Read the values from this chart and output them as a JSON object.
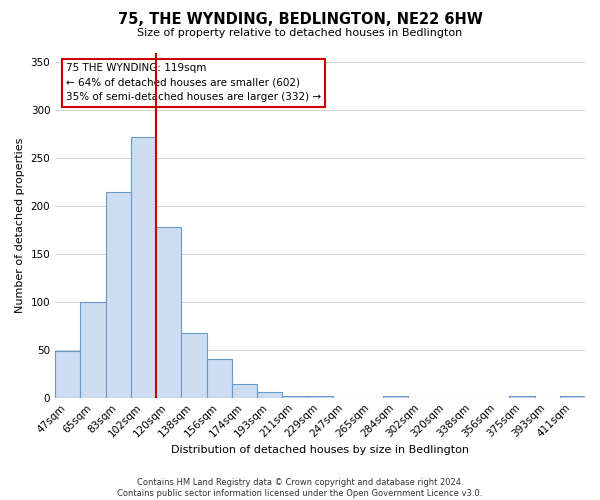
{
  "title": "75, THE WYNDING, BEDLINGTON, NE22 6HW",
  "subtitle": "Size of property relative to detached houses in Bedlington",
  "xlabel": "Distribution of detached houses by size in Bedlington",
  "ylabel": "Number of detached properties",
  "bar_labels": [
    "47sqm",
    "65sqm",
    "83sqm",
    "102sqm",
    "120sqm",
    "138sqm",
    "156sqm",
    "174sqm",
    "193sqm",
    "211sqm",
    "229sqm",
    "247sqm",
    "265sqm",
    "284sqm",
    "302sqm",
    "320sqm",
    "338sqm",
    "356sqm",
    "375sqm",
    "393sqm",
    "411sqm"
  ],
  "bar_values": [
    49,
    100,
    215,
    272,
    178,
    68,
    40,
    14,
    6,
    2,
    2,
    0,
    0,
    2,
    0,
    0,
    0,
    0,
    2,
    0,
    2
  ],
  "bar_color": "#cddcf0",
  "bar_edge_color": "#6699cc",
  "vline_index": 4,
  "vline_color": "#cc0000",
  "annotation_title": "75 THE WYNDING: 119sqm",
  "annotation_line1": "← 64% of detached houses are smaller (602)",
  "annotation_line2": "35% of semi-detached houses are larger (332) →",
  "annotation_box_color": "#ffffff",
  "annotation_box_edge_color": "#cc0000",
  "ylim": [
    0,
    360
  ],
  "yticks": [
    0,
    50,
    100,
    150,
    200,
    250,
    300,
    350
  ],
  "footer_line1": "Contains HM Land Registry data © Crown copyright and database right 2024.",
  "footer_line2": "Contains public sector information licensed under the Open Government Licence v3.0.",
  "background_color": "#ffffff",
  "grid_color": "#cccccc",
  "title_fontsize": 10.5,
  "subtitle_fontsize": 8,
  "xlabel_fontsize": 8,
  "ylabel_fontsize": 8,
  "tick_fontsize": 7.5,
  "footer_fontsize": 6
}
